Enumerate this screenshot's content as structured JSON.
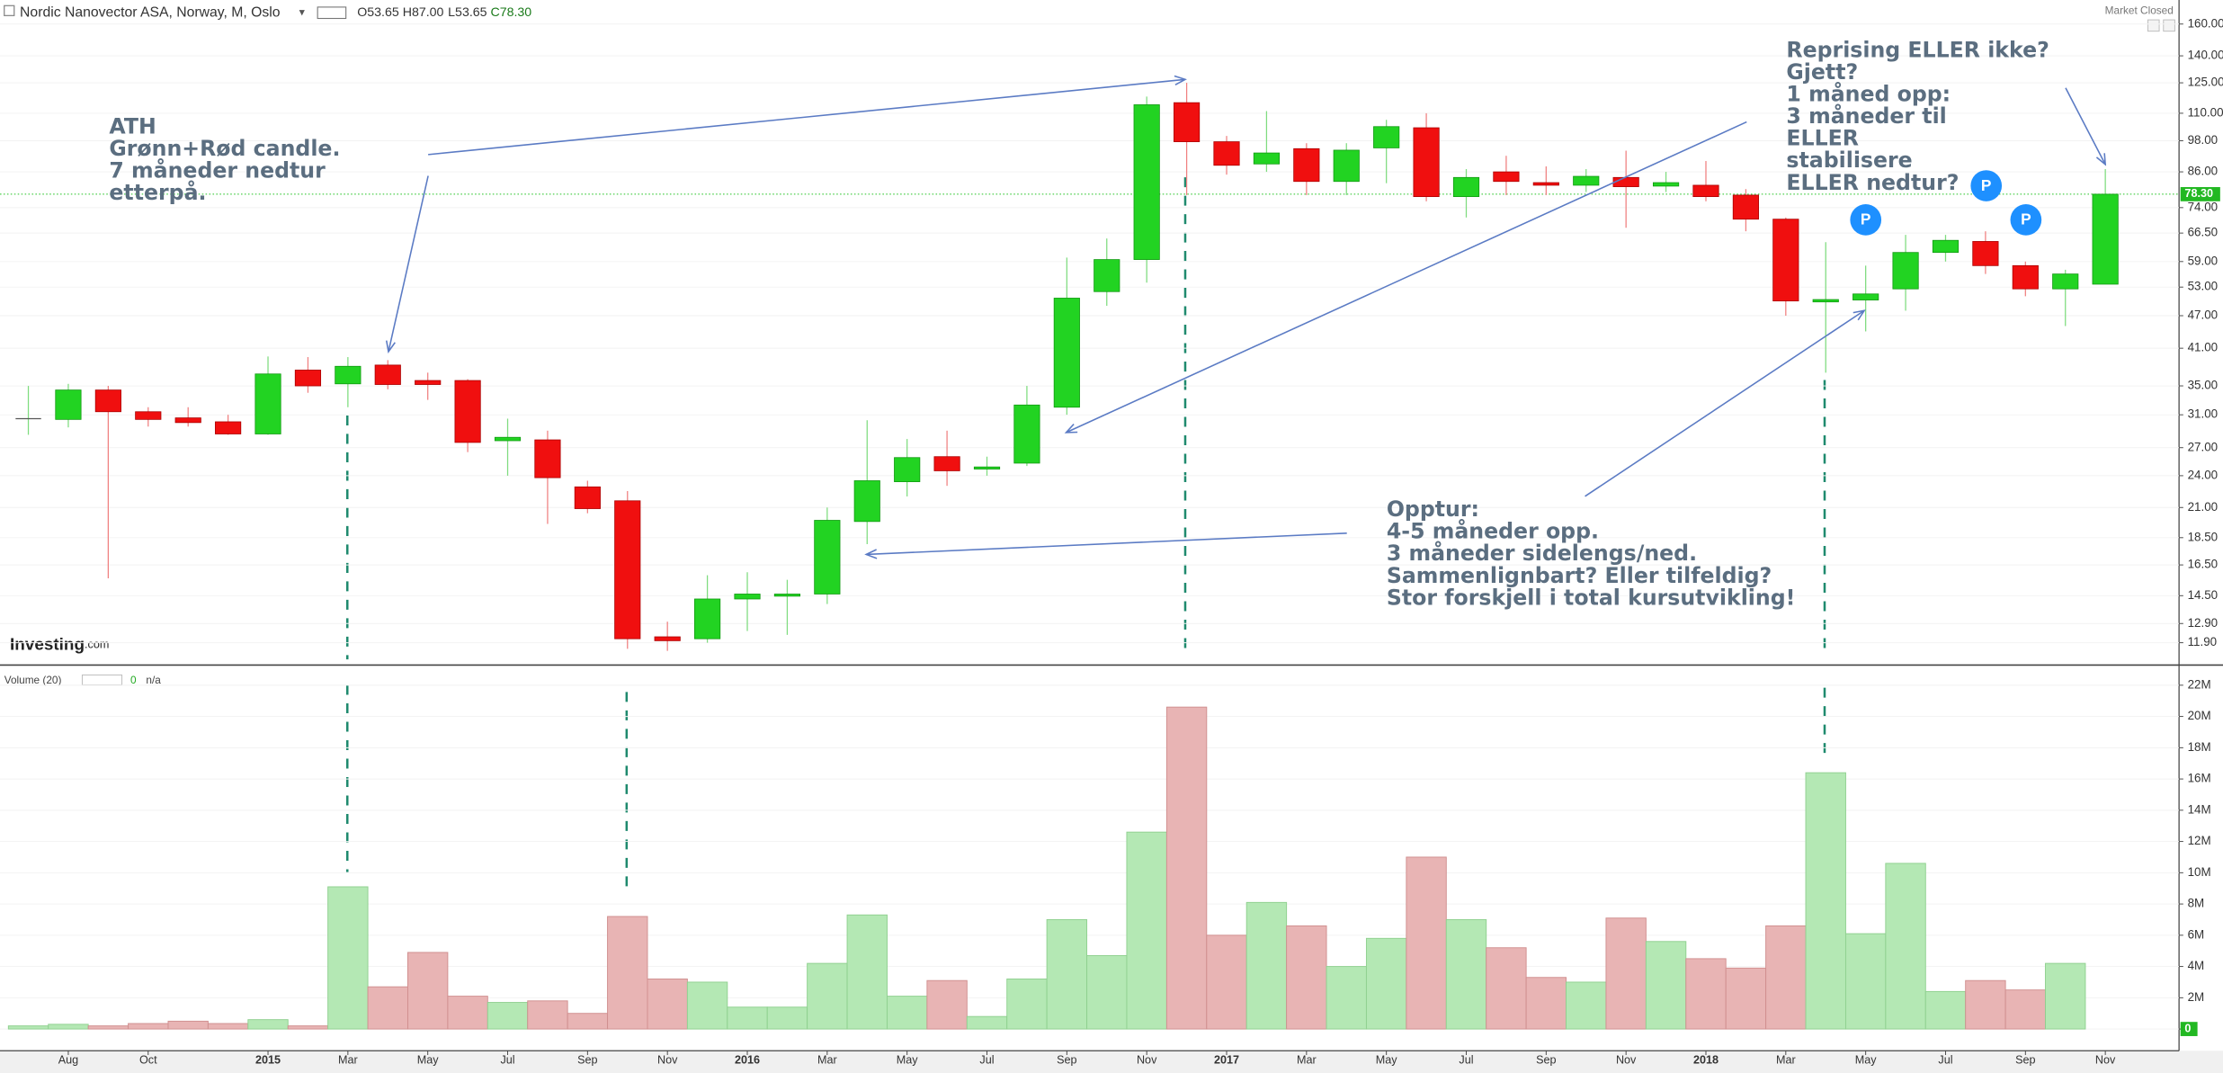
{
  "chart_data": {
    "type": "candlestick",
    "title": "Nordic Nanovector ASA, Norway, M, Oslo",
    "ohlc_labels": [
      "O53.65",
      "H87.00",
      "L53.65",
      "C78.30"
    ],
    "status": "Market Closed",
    "logo": [
      "Investing",
      ".com"
    ],
    "categories": [
      null,
      "Aug",
      null,
      "Oct",
      null,
      null,
      "2015",
      null,
      "Mar",
      null,
      "May",
      null,
      "Jul",
      null,
      "Sep",
      null,
      "Nov",
      null,
      "2016",
      null,
      "Mar",
      null,
      "May",
      null,
      "Jul",
      null,
      "Sep",
      null,
      "Nov",
      null,
      "2017",
      null,
      "Mar",
      null,
      "May",
      null,
      "Jul",
      null,
      "Sep",
      null,
      "Nov",
      null,
      "2018",
      null,
      "Mar",
      null,
      "May",
      null,
      "Jul",
      null,
      "Sep",
      null,
      "Nov"
    ],
    "open": [
      30.5,
      30.4,
      34.4,
      31.4,
      30.6,
      30.1,
      28.6,
      37.4,
      35.3,
      38.2,
      35.8,
      35.8,
      27.8,
      27.9,
      22.9,
      21.6,
      12.2,
      12.1,
      14.3,
      14.5,
      14.6,
      19.8,
      23.4,
      26,
      24.7,
      25.3,
      32,
      52,
      59.5,
      115,
      97.6,
      88.9,
      94.8,
      82.6,
      95.1,
      103.5,
      77.5,
      86,
      82.2,
      81.3,
      84,
      81,
      81.3,
      78,
      70.5,
      49.8,
      50.2,
      52.6,
      61.3,
      64.2,
      58,
      52.6,
      53.65
    ],
    "high": [
      35,
      35.3,
      35,
      32,
      32,
      31,
      39.6,
      39.5,
      39.5,
      39,
      37,
      36,
      30.5,
      29,
      23.5,
      22.5,
      13,
      15.8,
      16,
      15.5,
      21,
      30.3,
      28,
      29,
      26,
      35,
      60,
      65,
      118,
      125,
      100,
      111,
      97,
      97,
      107,
      110,
      87,
      92,
      88,
      87,
      94,
      86,
      90,
      80,
      71,
      64,
      58,
      66,
      66,
      67,
      59,
      57,
      87
    ],
    "low": [
      28.5,
      29.4,
      15.6,
      29.5,
      29.5,
      28.5,
      28.5,
      34,
      32,
      34.5,
      33,
      26.5,
      24,
      19.6,
      20.5,
      11.6,
      11.5,
      11.9,
      12.5,
      12.3,
      14,
      18,
      22,
      23,
      24,
      25,
      31,
      49,
      54,
      78,
      85,
      86,
      78,
      78,
      82,
      76,
      71,
      78,
      78,
      79,
      68,
      79,
      76,
      67,
      47,
      37,
      44,
      48,
      59,
      56,
      51,
      45,
      53.65
    ],
    "close": [
      30.5,
      34.4,
      31.4,
      30.4,
      30,
      28.6,
      36.8,
      35,
      38,
      35.2,
      35.2,
      27.6,
      28.2,
      23.8,
      20.9,
      12.1,
      12,
      14.3,
      14.6,
      14.6,
      19.9,
      23.5,
      25.9,
      24.5,
      24.9,
      32.3,
      50.6,
      59.5,
      114,
      97.6,
      88.4,
      93.1,
      82.6,
      94.2,
      104,
      77.5,
      84,
      82.6,
      81.3,
      84.4,
      80.8,
      82.2,
      77.5,
      70.5,
      50,
      50.3,
      51.5,
      61.3,
      64.5,
      58,
      52.6,
      56,
      78.3
    ],
    "up_color": "#22d322",
    "down_color": "#f00f0f",
    "log_scale": true,
    "ylim": [
      10.9,
      177
    ],
    "yticks": [
      {
        "value": 11.9,
        "label": "11.90"
      },
      {
        "value": 12.9,
        "label": "12.90"
      },
      {
        "value": 14.5,
        "label": "14.50"
      },
      {
        "value": 16.5,
        "label": "16.50"
      },
      {
        "value": 18.5,
        "label": "18.50"
      },
      {
        "value": 21,
        "label": "21.00"
      },
      {
        "value": 24,
        "label": "24.00"
      },
      {
        "value": 27,
        "label": "27.00"
      },
      {
        "value": 31,
        "label": "31.00"
      },
      {
        "value": 35,
        "label": "35.00"
      },
      {
        "value": 41,
        "label": "41.00"
      },
      {
        "value": 47,
        "label": "47.00"
      },
      {
        "value": 53,
        "label": "53.00"
      },
      {
        "value": 59,
        "label": "59.00"
      },
      {
        "value": 66.5,
        "label": "66.50"
      },
      {
        "value": 74,
        "label": "74.00"
      },
      {
        "value": 86,
        "label": "86.00"
      },
      {
        "value": 98,
        "label": "98.00"
      },
      {
        "value": 110,
        "label": "110.00"
      },
      {
        "value": 125,
        "label": "125.00"
      },
      {
        "value": 140,
        "label": "140.00"
      },
      {
        "value": 160,
        "label": "160.00"
      }
    ],
    "grid": true,
    "last_price": {
      "value": 78.3,
      "label": "78.30"
    },
    "volume": {
      "title": "Volume (20)",
      "readout": 0,
      "readout_extra": "n/a",
      "up_color": "#b4e8b4",
      "down_color": "#e8b4b4",
      "values": [
        200000,
        300000,
        200000,
        350000,
        500000,
        350000,
        600000,
        200000,
        9100000,
        2700000,
        4900000,
        2100000,
        1700000,
        1800000,
        1000000,
        7200000,
        3200000,
        3000000,
        1400000,
        1400000,
        4200000,
        7300000,
        2100000,
        3100000,
        800000,
        3200000,
        7000000,
        4700000,
        12600000,
        20600000,
        6000000,
        8100000,
        6600000,
        4000000,
        5800000,
        11000000,
        7000000,
        5200000,
        3300000,
        3000000,
        7100000,
        5600000,
        4500000,
        3900000,
        6600000,
        16400000,
        6100000,
        10600000,
        2400000,
        3100000,
        2500000,
        4200000,
        0
      ],
      "ylim": [
        -1300000,
        23200000
      ],
      "yticks": [
        0,
        {
          "value": 2000000,
          "label": "2M"
        },
        {
          "value": 4000000,
          "label": "4M"
        },
        {
          "value": 6000000,
          "label": "6M"
        },
        {
          "value": 8000000,
          "label": "8M"
        },
        {
          "value": 10000000,
          "label": "10M"
        },
        {
          "value": 12000000,
          "label": "12M"
        },
        {
          "value": 14000000,
          "label": "14M"
        },
        {
          "value": 16000000,
          "label": "16M"
        },
        {
          "value": 18000000,
          "label": "18M"
        },
        {
          "value": 20000000,
          "label": "20M"
        },
        {
          "value": 22000000,
          "label": "22M"
        }
      ]
    },
    "annotations": [
      {
        "lines": [
          "ATH",
          "Grønn+Rød candle.",
          "7 måneder nedtur",
          "etterpå."
        ]
      },
      {
        "lines": [
          "Reprising ELLER ikke?",
          "Gjett?",
          "1 måned opp:",
          "3 måneder til",
          "ELLER",
          "stabilisere",
          "ELLER nedtur?"
        ]
      },
      {
        "lines": [
          "Opptur:",
          "4-5 måneder opp.",
          "3 måneder sidelengs/ned.",
          "Sammenlignbart? Eller tilfeldig?",
          "Stor forskjell i total kursutvikling!"
        ]
      }
    ],
    "event_markers": [
      "P",
      "P",
      "P"
    ]
  }
}
